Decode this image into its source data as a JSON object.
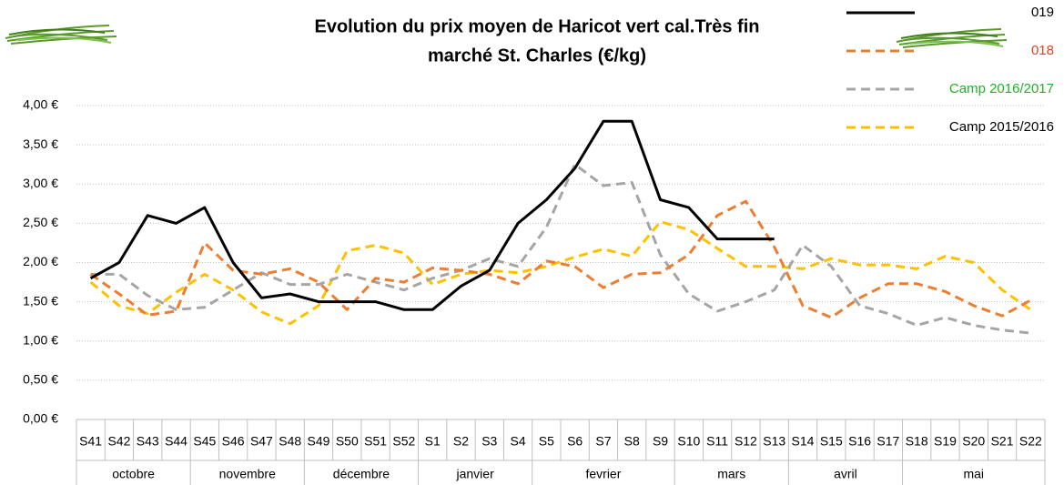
{
  "chart_data": {
    "type": "line",
    "title": [
      "Evolution du prix moyen de Haricot vert cal.Très fin",
      "marché St. Charles (€/kg)"
    ],
    "categories": [
      "S41",
      "S42",
      "S43",
      "S44",
      "S45",
      "S46",
      "S47",
      "S48",
      "S49",
      "S50",
      "S51",
      "S52",
      "S1",
      "S2",
      "S3",
      "S4",
      "S5",
      "S6",
      "S7",
      "S8",
      "S9",
      "S10",
      "S11",
      "S12",
      "S13",
      "S14",
      "S15",
      "S16",
      "S17",
      "S18",
      "S19",
      "S20",
      "S21",
      "S22"
    ],
    "groups": [
      {
        "label": "octobre",
        "span": 4
      },
      {
        "label": "novembre",
        "span": 4
      },
      {
        "label": "décembre",
        "span": 4
      },
      {
        "label": "janvier",
        "span": 4
      },
      {
        "label": "fevrier",
        "span": 5
      },
      {
        "label": "mars",
        "span": 4
      },
      {
        "label": "avril",
        "span": 4
      },
      {
        "label": "mai",
        "span": 5
      }
    ],
    "ylim": [
      0,
      4
    ],
    "yticks": [
      {
        "value": 0,
        "label": "0,00 €"
      },
      {
        "value": 0.5,
        "label": "0,50 €"
      },
      {
        "value": 1,
        "label": "1,00 €"
      },
      {
        "value": 1.5,
        "label": "1,50 €"
      },
      {
        "value": 2,
        "label": "2,00 €"
      },
      {
        "value": 2.5,
        "label": "2,50 €"
      },
      {
        "value": 3,
        "label": "3,00 €"
      },
      {
        "value": 3.5,
        "label": "3,50 €"
      },
      {
        "value": 4,
        "label": "4,00 €"
      }
    ],
    "grid": true,
    "legend": "top-right",
    "series": [
      {
        "name": "019",
        "color": "#000000",
        "label_color": "#000000",
        "dashed": false,
        "values": [
          1.8,
          2.0,
          2.6,
          2.5,
          2.7,
          2.0,
          1.55,
          1.6,
          1.5,
          1.5,
          1.5,
          1.4,
          1.4,
          1.7,
          1.9,
          2.5,
          2.8,
          3.2,
          3.8,
          3.8,
          2.8,
          2.7,
          2.3,
          2.3,
          2.3,
          null,
          null,
          null,
          null,
          null,
          null,
          null,
          null,
          null
        ]
      },
      {
        "name": "018",
        "color": "#ed7d31",
        "label_color": "#e8401c",
        "dashed": true,
        "values": [
          1.85,
          1.6,
          1.33,
          1.38,
          2.25,
          1.9,
          1.85,
          1.92,
          1.75,
          1.4,
          1.8,
          1.75,
          1.93,
          1.9,
          1.85,
          1.73,
          2.02,
          1.95,
          1.68,
          1.85,
          1.87,
          2.1,
          2.6,
          2.78,
          2.2,
          1.45,
          1.3,
          1.55,
          1.73,
          1.73,
          1.63,
          1.45,
          1.32,
          1.52
        ]
      },
      {
        "name": "Camp 2016/2017",
        "color": "#a5a5a5",
        "label_color": "#22b02a",
        "dashed": true,
        "values": [
          1.85,
          1.85,
          1.58,
          1.4,
          1.43,
          1.65,
          1.87,
          1.72,
          1.72,
          1.85,
          1.75,
          1.65,
          1.8,
          1.9,
          2.05,
          1.95,
          2.45,
          3.25,
          2.98,
          3.02,
          2.1,
          1.6,
          1.38,
          1.5,
          1.65,
          2.22,
          1.95,
          1.45,
          1.35,
          1.2,
          1.3,
          1.2,
          1.14,
          1.1
        ]
      },
      {
        "name": "Camp 2015/2016",
        "color": "#ffc000",
        "label_color": "#000000",
        "dashed": true,
        "values": [
          1.75,
          1.45,
          1.35,
          1.62,
          1.85,
          1.65,
          1.37,
          1.22,
          1.45,
          2.15,
          2.22,
          2.12,
          1.72,
          1.85,
          1.9,
          1.87,
          1.95,
          2.07,
          2.17,
          2.08,
          2.52,
          2.42,
          2.18,
          1.95,
          1.95,
          1.92,
          2.05,
          1.97,
          1.97,
          1.92,
          2.08,
          2.0,
          1.65,
          1.4
        ]
      }
    ]
  }
}
